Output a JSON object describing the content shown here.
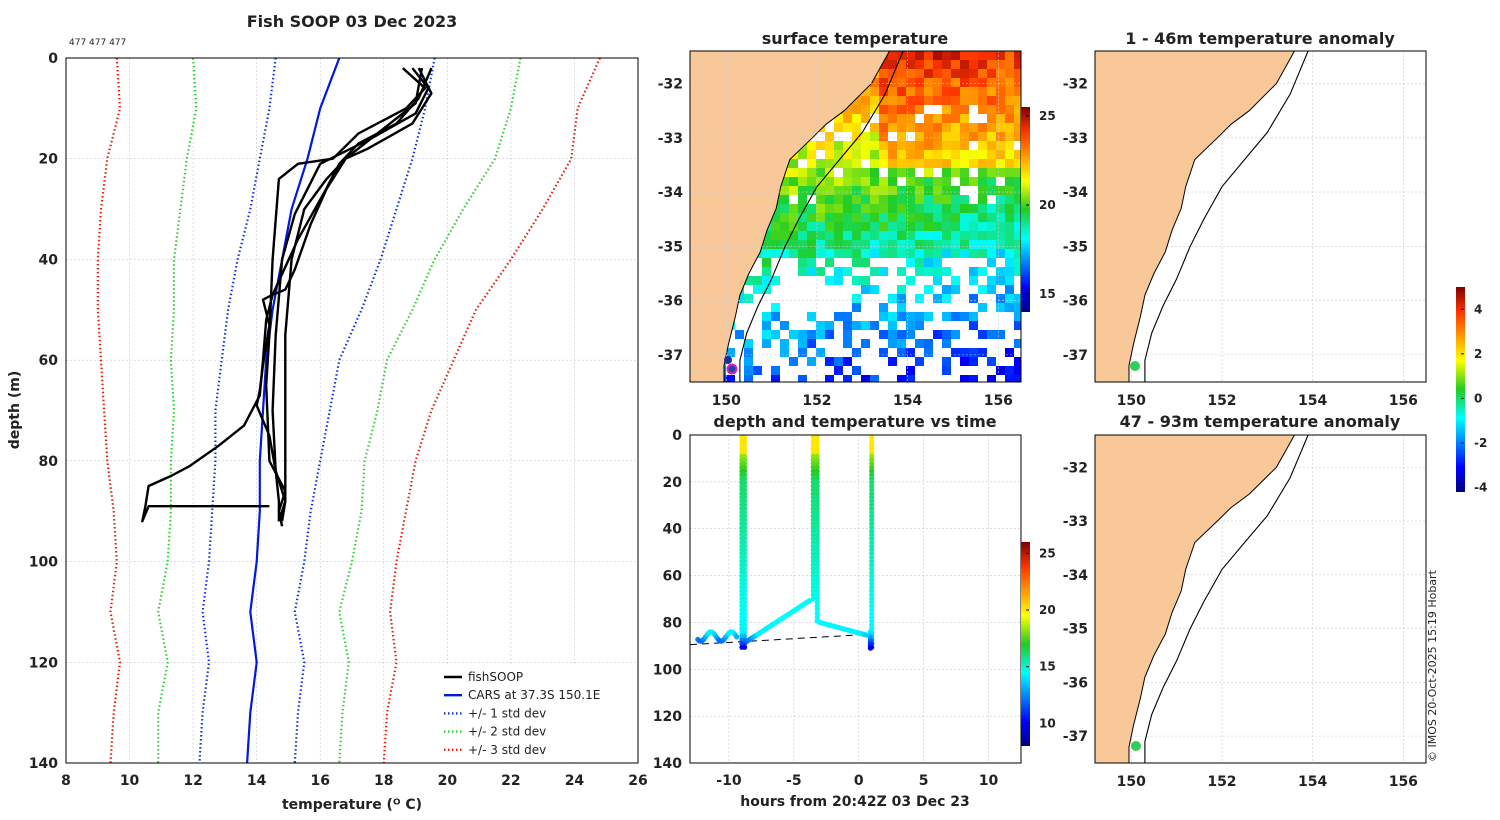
{
  "colors": {
    "black": "#000000",
    "cars": "#0018e0",
    "std1": "#1030d8",
    "std2": "#33cc33",
    "std3": "#e02010",
    "land": "#f9c898",
    "grid": "#c8c8d8"
  },
  "chart_data": [
    {
      "id": "profile",
      "type": "line",
      "title": "Fish SOOP 03 Dec 2023",
      "annotation": "477 477 477",
      "xlabel": "temperature (ᴼ C)",
      "ylabel": "depth (m)",
      "xlim": [
        8,
        26
      ],
      "ylim": [
        0,
        140
      ],
      "y_reversed": true,
      "xticks": [
        "8",
        "10",
        "12",
        "14",
        "16",
        "18",
        "20",
        "22",
        "24",
        "26"
      ],
      "yticks": [
        "0",
        "20",
        "40",
        "60",
        "80",
        "100",
        "120",
        "140"
      ],
      "grid": true,
      "legend": [
        {
          "label": "fishSOOP",
          "color": "#000000",
          "dash": "solid"
        },
        {
          "label": "CARS at 37.3S 150.1E",
          "color": "#0018e0",
          "dash": "solid"
        },
        {
          "label": "+/- 1 std dev",
          "color": "#1030d8",
          "dash": "dotted"
        },
        {
          "label": "+/- 2 std dev",
          "color": "#33cc33",
          "dash": "dotted"
        },
        {
          "label": "+/- 3 std dev",
          "color": "#e02010",
          "dash": "dotted"
        }
      ],
      "series": [
        {
          "name": "CARS",
          "points": [
            [
              16.6,
              0
            ],
            [
              16.0,
              10
            ],
            [
              15.6,
              20
            ],
            [
              15.1,
              30
            ],
            [
              14.8,
              40
            ],
            [
              14.5,
              50
            ],
            [
              14.3,
              60
            ],
            [
              14.2,
              70
            ],
            [
              14.1,
              80
            ],
            [
              14.1,
              90
            ],
            [
              14.0,
              100
            ],
            [
              13.8,
              110
            ],
            [
              14.0,
              120
            ],
            [
              13.8,
              130
            ],
            [
              13.7,
              140
            ]
          ]
        },
        {
          "name": "std1_minus",
          "points": [
            [
              14.6,
              0
            ],
            [
              14.4,
              10
            ],
            [
              14.1,
              20
            ],
            [
              13.8,
              30
            ],
            [
              13.4,
              40
            ],
            [
              13.1,
              50
            ],
            [
              12.9,
              60
            ],
            [
              12.7,
              70
            ],
            [
              12.7,
              80
            ],
            [
              12.6,
              90
            ],
            [
              12.5,
              100
            ],
            [
              12.3,
              110
            ],
            [
              12.5,
              120
            ],
            [
              12.3,
              130
            ],
            [
              12.2,
              140
            ]
          ]
        },
        {
          "name": "std1_plus",
          "points": [
            [
              19.6,
              0
            ],
            [
              19.3,
              10
            ],
            [
              18.9,
              20
            ],
            [
              18.4,
              30
            ],
            [
              17.9,
              40
            ],
            [
              17.3,
              50
            ],
            [
              16.6,
              60
            ],
            [
              16.3,
              70
            ],
            [
              16.0,
              80
            ],
            [
              15.7,
              90
            ],
            [
              15.5,
              100
            ],
            [
              15.2,
              110
            ],
            [
              15.5,
              120
            ],
            [
              15.3,
              130
            ],
            [
              15.2,
              140
            ]
          ]
        },
        {
          "name": "std2_minus",
          "points": [
            [
              12.0,
              0
            ],
            [
              12.1,
              10
            ],
            [
              11.8,
              20
            ],
            [
              11.6,
              30
            ],
            [
              11.4,
              40
            ],
            [
              11.4,
              50
            ],
            [
              11.3,
              60
            ],
            [
              11.4,
              70
            ],
            [
              11.3,
              80
            ],
            [
              11.3,
              90
            ],
            [
              11.2,
              100
            ],
            [
              10.9,
              110
            ],
            [
              11.2,
              120
            ],
            [
              10.9,
              130
            ],
            [
              10.9,
              140
            ]
          ]
        },
        {
          "name": "std2_plus",
          "points": [
            [
              22.3,
              0
            ],
            [
              22.0,
              10
            ],
            [
              21.5,
              20
            ],
            [
              20.5,
              30
            ],
            [
              19.6,
              40
            ],
            [
              18.9,
              50
            ],
            [
              18.1,
              60
            ],
            [
              17.8,
              70
            ],
            [
              17.4,
              80
            ],
            [
              17.3,
              90
            ],
            [
              17.0,
              100
            ],
            [
              16.6,
              110
            ],
            [
              16.9,
              120
            ],
            [
              16.7,
              130
            ],
            [
              16.6,
              140
            ]
          ]
        },
        {
          "name": "std3_minus",
          "points": [
            [
              9.6,
              0
            ],
            [
              9.7,
              10
            ],
            [
              9.3,
              20
            ],
            [
              9.1,
              30
            ],
            [
              9.0,
              40
            ],
            [
              9.0,
              50
            ],
            [
              9.1,
              60
            ],
            [
              9.2,
              70
            ],
            [
              9.3,
              80
            ],
            [
              9.5,
              90
            ],
            [
              9.6,
              100
            ],
            [
              9.4,
              110
            ],
            [
              9.7,
              120
            ],
            [
              9.5,
              130
            ],
            [
              9.4,
              140
            ]
          ]
        },
        {
          "name": "std3_plus",
          "points": [
            [
              24.8,
              0
            ],
            [
              24.1,
              10
            ],
            [
              23.9,
              20
            ],
            [
              23.0,
              30
            ],
            [
              22.0,
              40
            ],
            [
              20.9,
              50
            ],
            [
              20.2,
              60
            ],
            [
              19.5,
              70
            ],
            [
              19.0,
              80
            ],
            [
              18.7,
              90
            ],
            [
              18.4,
              100
            ],
            [
              18.2,
              110
            ],
            [
              18.4,
              120
            ],
            [
              18.1,
              130
            ],
            [
              18.0,
              140
            ]
          ]
        },
        {
          "name": "fishSOOP cast 1",
          "points": [
            [
              18.6,
              2
            ],
            [
              19.3,
              6
            ],
            [
              18.7,
              10
            ],
            [
              17.2,
              15
            ],
            [
              16.4,
              20
            ],
            [
              15.3,
              21
            ],
            [
              14.7,
              24
            ],
            [
              14.5,
              40
            ],
            [
              14.4,
              55
            ],
            [
              14.3,
              65
            ],
            [
              14.4,
              80
            ],
            [
              14.9,
              86
            ],
            [
              14.7,
              90
            ],
            [
              14.8,
              93
            ]
          ]
        },
        {
          "name": "fishSOOP cast 2",
          "points": [
            [
              18.9,
              2
            ],
            [
              19.4,
              6
            ],
            [
              19.0,
              11
            ],
            [
              17.6,
              16
            ],
            [
              16.0,
              21
            ],
            [
              15.6,
              26
            ],
            [
              15.2,
              31
            ],
            [
              14.8,
              40
            ],
            [
              14.6,
              55
            ],
            [
              14.5,
              70
            ],
            [
              14.6,
              82
            ],
            [
              14.7,
              88
            ],
            [
              14.7,
              92
            ]
          ]
        },
        {
          "name": "fishSOOP cast 3",
          "points": [
            [
              19.1,
              2
            ],
            [
              19.5,
              7
            ],
            [
              18.9,
              13
            ],
            [
              17.5,
              18
            ],
            [
              16.8,
              20
            ],
            [
              16.2,
              24
            ],
            [
              15.5,
              30
            ],
            [
              15.1,
              40
            ],
            [
              14.9,
              55
            ],
            [
              14.9,
              75
            ],
            [
              14.9,
              88
            ],
            [
              14.8,
              92
            ]
          ]
        },
        {
          "name": "fishSOOP cast 4",
          "points": [
            [
              19.5,
              2
            ],
            [
              19.1,
              8
            ],
            [
              18.4,
              13
            ],
            [
              17.2,
              17
            ],
            [
              16.6,
              21
            ],
            [
              16.1,
              27
            ],
            [
              15.3,
              36
            ],
            [
              14.5,
              47
            ],
            [
              14.3,
              52
            ],
            [
              14.2,
              60
            ],
            [
              14.1,
              67
            ],
            [
              13.6,
              73
            ],
            [
              12.8,
              77
            ],
            [
              11.9,
              81
            ],
            [
              11.3,
              83
            ],
            [
              10.6,
              85
            ],
            [
              10.5,
              89
            ],
            [
              10.4,
              92
            ],
            [
              10.6,
              89
            ],
            [
              14.4,
              89
            ]
          ]
        },
        {
          "name": "fishSOOP cast 5",
          "points": [
            [
              19.2,
              2
            ],
            [
              19.0,
              9
            ],
            [
              17.8,
              15
            ],
            [
              16.8,
              20
            ],
            [
              16.2,
              26
            ],
            [
              15.7,
              33
            ],
            [
              15.2,
              42
            ],
            [
              14.9,
              46
            ],
            [
              14.5,
              47
            ],
            [
              14.2,
              48
            ],
            [
              14.4,
              53
            ],
            [
              14.2,
              61
            ],
            [
              14.1,
              66
            ],
            [
              14.0,
              69
            ],
            [
              14.4,
              75
            ],
            [
              14.6,
              82
            ],
            [
              14.9,
              88
            ],
            [
              14.7,
              92
            ]
          ]
        }
      ]
    },
    {
      "id": "surface_temp",
      "type": "heatmap",
      "title": "surface temperature",
      "xlim": [
        149.2,
        156.5
      ],
      "ylim": [
        -37.5,
        -31.4
      ],
      "xticks": [
        "150",
        "152",
        "154",
        "156"
      ],
      "yticks": [
        "-32",
        "-33",
        "-34",
        "-35",
        "-36",
        "-37"
      ],
      "colorbar": {
        "min": 14,
        "max": 25.5,
        "ticks": [
          "15",
          "20",
          "25"
        ]
      }
    },
    {
      "id": "depth_time",
      "type": "scatter",
      "title": "depth and temperature vs time",
      "xlabel": "hours from 20:42Z 03 Dec 23",
      "xlim": [
        -13,
        12.5
      ],
      "ylim": [
        0,
        140
      ],
      "y_reversed": true,
      "xticks": [
        "-10",
        "-5",
        "0",
        "5",
        "10"
      ],
      "yticks": [
        "0",
        "20",
        "40",
        "60",
        "80",
        "100",
        "120",
        "140"
      ],
      "colorbar": {
        "min": 8,
        "max": 26,
        "ticks": [
          "10",
          "15",
          "20",
          "25"
        ]
      },
      "dashed_line": [
        [
          -13,
          89.5
        ],
        [
          1.0,
          85
        ]
      ]
    },
    {
      "id": "anomaly_upper",
      "type": "heatmap",
      "title": "1 - 46m temperature anomaly",
      "xlim": [
        149.2,
        156.5
      ],
      "ylim": [
        -37.5,
        -31.4
      ],
      "xticks": [
        "150",
        "152",
        "154",
        "156"
      ],
      "yticks": [
        "-32",
        "-33",
        "-34",
        "-35",
        "-36",
        "-37"
      ]
    },
    {
      "id": "anomaly_lower",
      "type": "heatmap",
      "title": "47 - 93m temperature anomaly",
      "xlim": [
        149.2,
        156.5
      ],
      "ylim": [
        -37.5,
        -31.4
      ],
      "xticks": [
        "150",
        "152",
        "154",
        "156"
      ],
      "yticks": [
        "-32",
        "-33",
        "-34",
        "-35",
        "-36",
        "-37"
      ],
      "colorbar": {
        "min": -4.2,
        "max": 5,
        "ticks": [
          "4",
          "2",
          "0",
          "-2",
          "-4"
        ]
      }
    }
  ],
  "credit": "© IMOS 20-Oct-2025 15:19 Hobart"
}
